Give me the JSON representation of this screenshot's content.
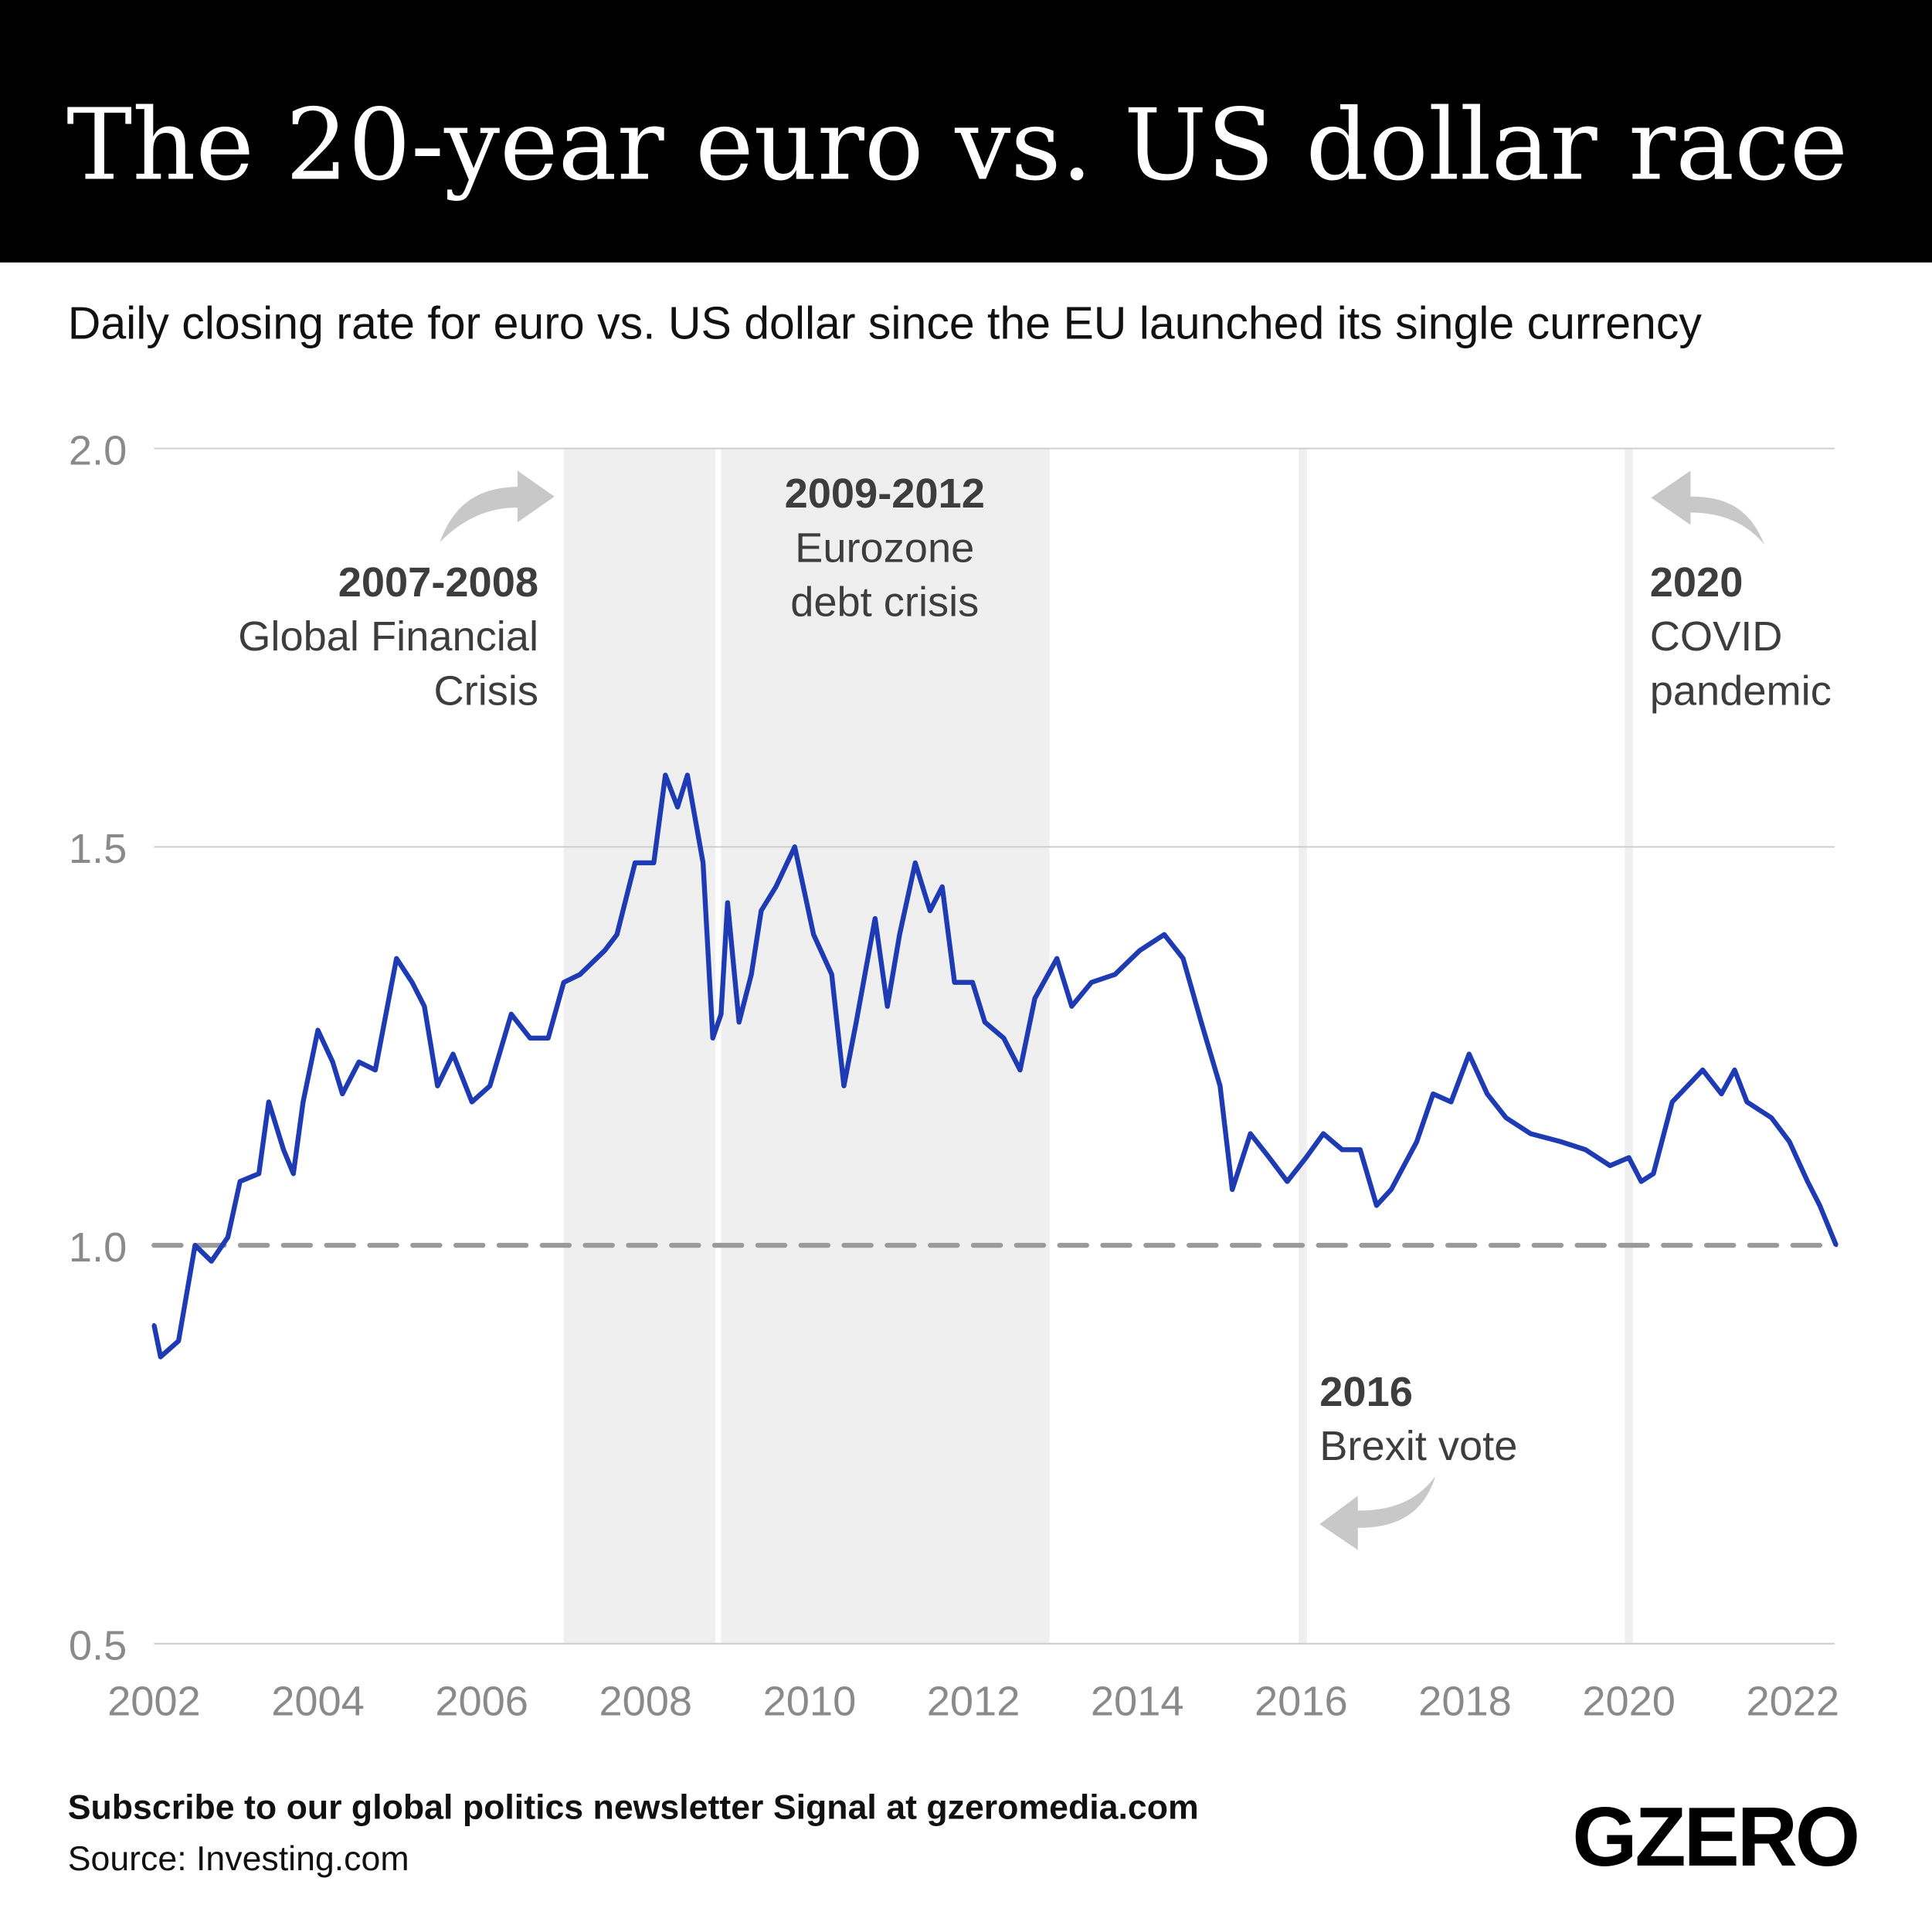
{
  "header": {
    "title": "The 20-year euro vs. US dollar race"
  },
  "subtitle": "Daily closing rate for euro vs. US dollar since the EU launched its single currency",
  "colors": {
    "line": "#1f3bb3",
    "band": "#efefef",
    "header_bg": "#000000",
    "reference": "#9a9a9a",
    "arrow": "#c8c8c8"
  },
  "annotations": [
    {
      "year": "2007-2008",
      "label_lines": [
        "Global Financial",
        "Crisis"
      ]
    },
    {
      "year": "2009-2012",
      "label_lines": [
        "Eurozone",
        "debt crisis"
      ]
    },
    {
      "year": "2016",
      "label_lines": [
        "Brexit vote"
      ]
    },
    {
      "year": "2020",
      "label_lines": [
        "COVID",
        "pandemic"
      ]
    }
  ],
  "footer": {
    "cta": "Subscribe to our global politics newsletter Signal at gzeromedia.com",
    "source": "Source: Investing.com",
    "logo": "GZERO"
  },
  "chart_data": {
    "type": "line",
    "title": "The 20-year euro vs. US dollar race",
    "subtitle": "Daily closing rate for euro vs. US dollar since the EU launched its single currency",
    "xlabel": "",
    "ylabel": "",
    "xlim": [
      2002,
      2022.53
    ],
    "ylim": [
      0.5,
      2.0
    ],
    "x_ticks": [
      "2002",
      "2004",
      "2006",
      "2008",
      "2010",
      "2012",
      "2014",
      "2016",
      "2018",
      "2020",
      "2022"
    ],
    "y_ticks": [
      "0.5",
      "1.0",
      "1.5",
      "2.0"
    ],
    "grid": "horizontal",
    "reference_line": {
      "y": 1.0,
      "style": "dashed"
    },
    "shaded_periods": [
      {
        "from": 2007.0,
        "to": 2008.85
      },
      {
        "from": 2008.92,
        "to": 2012.93
      },
      {
        "from": 2015.97,
        "to": 2016.07
      },
      {
        "from": 2019.95,
        "to": 2020.05
      }
    ],
    "series": [
      {
        "x": [
          2002.0,
          2002.08,
          2002.3,
          2002.5,
          2002.7,
          2002.9,
          2003.05,
          2003.28,
          2003.4,
          2003.58,
          2003.7,
          2003.82,
          2004.0,
          2004.18,
          2004.3,
          2004.5,
          2004.7,
          2004.96,
          2005.15,
          2005.3,
          2005.46,
          2005.65,
          2005.88,
          2006.1,
          2006.36,
          2006.59,
          2006.81,
          2007.0,
          2007.2,
          2007.5,
          2007.65,
          2007.87,
          2008.1,
          2008.24,
          2008.39,
          2008.51,
          2008.7,
          2008.82,
          2008.92,
          2009.0,
          2009.14,
          2009.29,
          2009.41,
          2009.59,
          2009.82,
          2010.05,
          2010.27,
          2010.42,
          2010.57,
          2010.8,
          2010.95,
          2011.1,
          2011.29,
          2011.47,
          2011.62,
          2011.77,
          2011.99,
          2012.14,
          2012.37,
          2012.57,
          2012.75,
          2013.02,
          2013.2,
          2013.44,
          2013.73,
          2014.03,
          2014.33,
          2014.56,
          2014.78,
          2015.01,
          2015.16,
          2015.38,
          2015.61,
          2015.83,
          2016.06,
          2016.27,
          2016.5,
          2016.72,
          2016.92,
          2017.1,
          2017.41,
          2017.61,
          2017.83,
          2018.05,
          2018.27,
          2018.5,
          2018.8,
          2019.17,
          2019.47,
          2019.77,
          2020.0,
          2020.15,
          2020.3,
          2020.53,
          2020.9,
          2021.13,
          2021.29,
          2021.44,
          2021.74,
          2021.96,
          2022.18,
          2022.33,
          2022.53
        ],
        "y": [
          0.9,
          0.86,
          0.88,
          1.0,
          0.98,
          1.01,
          1.08,
          1.09,
          1.18,
          1.12,
          1.09,
          1.18,
          1.27,
          1.23,
          1.19,
          1.23,
          1.22,
          1.36,
          1.33,
          1.3,
          1.2,
          1.24,
          1.18,
          1.2,
          1.29,
          1.26,
          1.26,
          1.33,
          1.34,
          1.37,
          1.39,
          1.48,
          1.48,
          1.59,
          1.55,
          1.59,
          1.48,
          1.26,
          1.29,
          1.43,
          1.28,
          1.34,
          1.42,
          1.45,
          1.5,
          1.39,
          1.34,
          1.2,
          1.28,
          1.41,
          1.3,
          1.39,
          1.48,
          1.42,
          1.45,
          1.33,
          1.33,
          1.28,
          1.26,
          1.22,
          1.31,
          1.36,
          1.3,
          1.33,
          1.34,
          1.37,
          1.39,
          1.36,
          1.28,
          1.2,
          1.07,
          1.14,
          1.11,
          1.08,
          1.11,
          1.14,
          1.12,
          1.12,
          1.05,
          1.07,
          1.13,
          1.19,
          1.18,
          1.24,
          1.19,
          1.16,
          1.14,
          1.13,
          1.12,
          1.1,
          1.11,
          1.08,
          1.09,
          1.18,
          1.22,
          1.19,
          1.22,
          1.18,
          1.16,
          1.13,
          1.08,
          1.05,
          1.0
        ]
      }
    ]
  }
}
